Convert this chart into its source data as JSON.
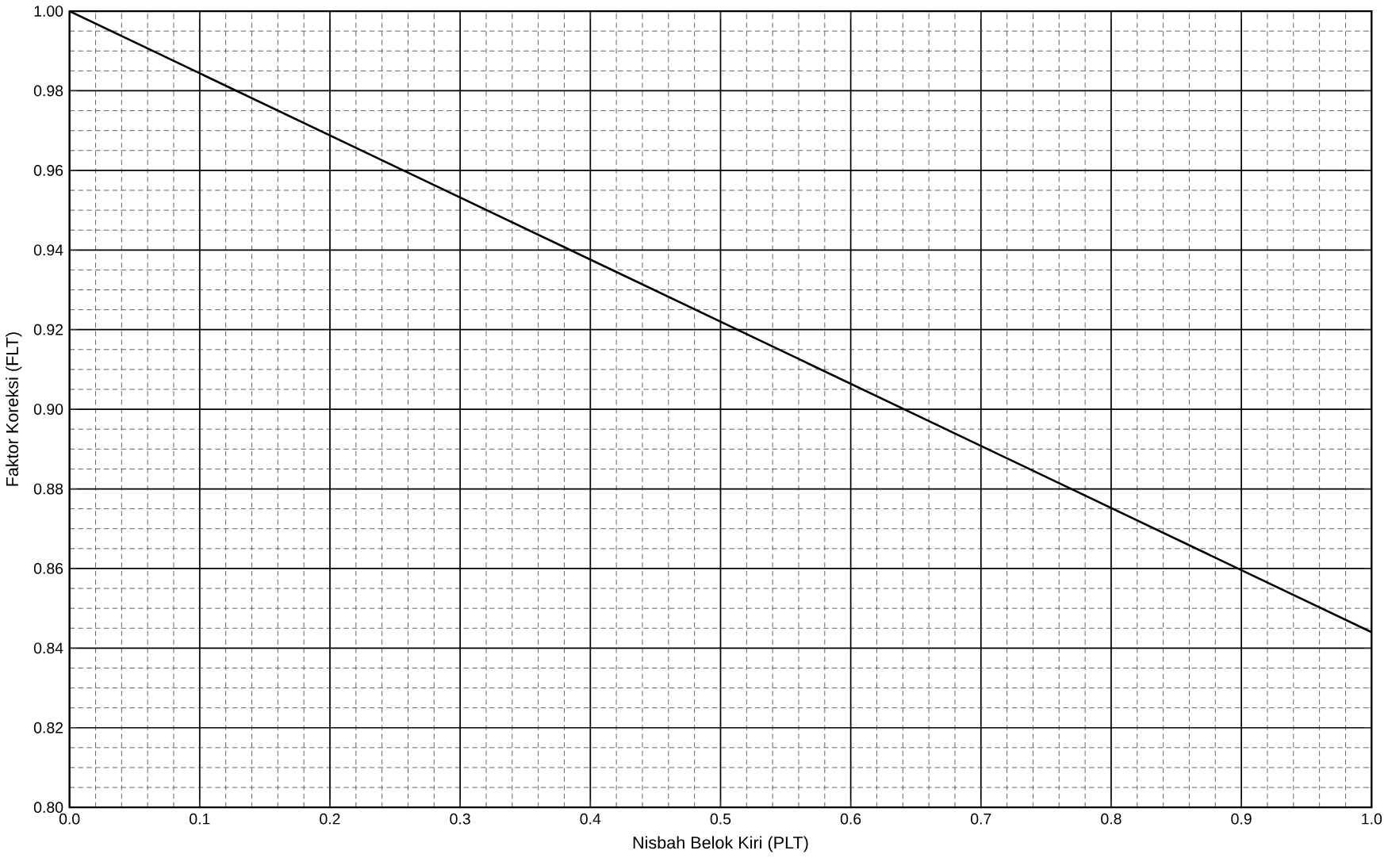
{
  "chart_data": {
    "type": "line",
    "xlabel": "Nisbah Belok Kiri (PLT)",
    "ylabel": "Faktor Koreksi (FLT)",
    "x": [
      0.0,
      1.0
    ],
    "series": [
      {
        "color": "#000000",
        "values": [
          1.0,
          0.844
        ]
      }
    ],
    "xlim": [
      0,
      1
    ],
    "ylim": [
      0.8,
      1.0
    ],
    "xticks": [
      {
        "value": 0,
        "label": "0.0"
      },
      0.1,
      0.2,
      0.3,
      0.4,
      0.5,
      0.6,
      0.7,
      0.8,
      0.9,
      {
        "value": 1,
        "label": "1.0"
      }
    ],
    "yticks": [
      {
        "value": 0.8,
        "label": "0.80"
      },
      0.82,
      0.84,
      0.86,
      0.88,
      {
        "value": 0.9,
        "label": "0.90"
      },
      0.92,
      0.94,
      0.96,
      0.98,
      {
        "value": 1.0,
        "label": "1.00"
      }
    ],
    "grid": true,
    "marker": "none",
    "line_style": "solid"
  }
}
